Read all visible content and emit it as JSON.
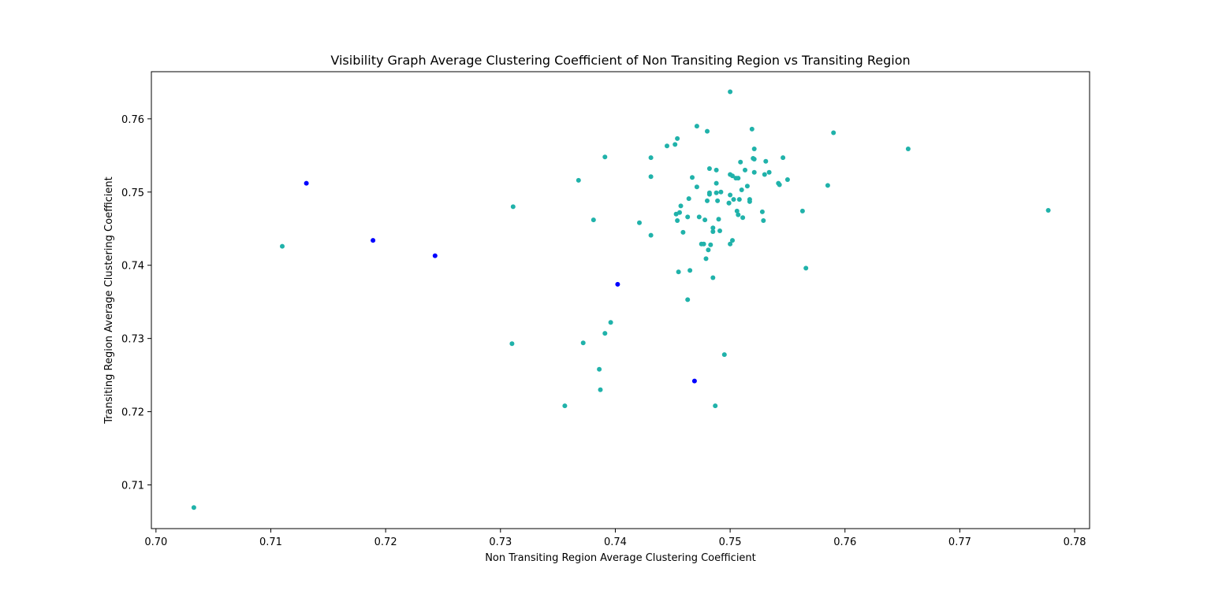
{
  "chart_data": {
    "type": "scatter",
    "title": "Visibility Graph Average Clustering Coefficient of Non Transiting Region vs Transiting Region",
    "xlabel": "Non Transiting Region Average Clustering Coefficient",
    "ylabel": "Transiting Region Average Clustering Coefficient",
    "xlim": [
      0.6996,
      0.7813
    ],
    "ylim": [
      0.70403,
      0.76644
    ],
    "xticks": [
      0.7,
      0.71,
      0.72,
      0.73,
      0.74,
      0.75,
      0.76,
      0.77,
      0.78
    ],
    "xtick_labels": [
      "0.70",
      "0.71",
      "0.72",
      "0.73",
      "0.74",
      "0.75",
      "0.76",
      "0.77",
      "0.78"
    ],
    "yticks": [
      0.71,
      0.72,
      0.73,
      0.74,
      0.75,
      0.76
    ],
    "ytick_labels": [
      "0.71",
      "0.72",
      "0.73",
      "0.74",
      "0.75",
      "0.76"
    ],
    "grid": false,
    "legend": "none",
    "series": [
      {
        "color": "#20b2aa",
        "points": [
          [
            0.7033,
            0.7069
          ],
          [
            0.711,
            0.7426
          ],
          [
            0.731,
            0.7293
          ],
          [
            0.7311,
            0.748
          ],
          [
            0.7356,
            0.7208
          ],
          [
            0.7368,
            0.7516
          ],
          [
            0.7372,
            0.7294
          ],
          [
            0.7381,
            0.7462
          ],
          [
            0.7386,
            0.7258
          ],
          [
            0.7387,
            0.723
          ],
          [
            0.7391,
            0.7548
          ],
          [
            0.7391,
            0.7307
          ],
          [
            0.7396,
            0.7322
          ],
          [
            0.7421,
            0.7458
          ],
          [
            0.7431,
            0.7547
          ],
          [
            0.7431,
            0.7521
          ],
          [
            0.7431,
            0.7441
          ],
          [
            0.7445,
            0.7563
          ],
          [
            0.7452,
            0.7565
          ],
          [
            0.7453,
            0.747
          ],
          [
            0.7454,
            0.7573
          ],
          [
            0.7454,
            0.7461
          ],
          [
            0.7455,
            0.7391
          ],
          [
            0.7456,
            0.7472
          ],
          [
            0.7457,
            0.7481
          ],
          [
            0.7459,
            0.7445
          ],
          [
            0.7463,
            0.7466
          ],
          [
            0.7463,
            0.7353
          ],
          [
            0.7464,
            0.7491
          ],
          [
            0.7465,
            0.7393
          ],
          [
            0.7467,
            0.752
          ],
          [
            0.7471,
            0.759
          ],
          [
            0.7471,
            0.7507
          ],
          [
            0.7473,
            0.7466
          ],
          [
            0.7475,
            0.7429
          ],
          [
            0.7477,
            0.7429
          ],
          [
            0.7478,
            0.7462
          ],
          [
            0.7479,
            0.7409
          ],
          [
            0.748,
            0.7583
          ],
          [
            0.748,
            0.7488
          ],
          [
            0.7481,
            0.7421
          ],
          [
            0.7482,
            0.7497
          ],
          [
            0.7482,
            0.7532
          ],
          [
            0.7482,
            0.7499
          ],
          [
            0.7483,
            0.7428
          ],
          [
            0.7485,
            0.7383
          ],
          [
            0.7485,
            0.7451
          ],
          [
            0.7485,
            0.7446
          ],
          [
            0.7487,
            0.7208
          ],
          [
            0.7488,
            0.7499
          ],
          [
            0.7488,
            0.753
          ],
          [
            0.7488,
            0.7512
          ],
          [
            0.7489,
            0.7488
          ],
          [
            0.749,
            0.7463
          ],
          [
            0.7491,
            0.7447
          ],
          [
            0.7492,
            0.75
          ],
          [
            0.7495,
            0.7278
          ],
          [
            0.7499,
            0.7485
          ],
          [
            0.7499,
            0.7485
          ],
          [
            0.75,
            0.7496
          ],
          [
            0.75,
            0.7524
          ],
          [
            0.75,
            0.7637
          ],
          [
            0.75,
            0.7429
          ],
          [
            0.7502,
            0.7434
          ],
          [
            0.7502,
            0.7522
          ],
          [
            0.7503,
            0.749
          ],
          [
            0.7505,
            0.7519
          ],
          [
            0.7506,
            0.7474
          ],
          [
            0.7507,
            0.7519
          ],
          [
            0.7507,
            0.7469
          ],
          [
            0.7508,
            0.749
          ],
          [
            0.7509,
            0.7541
          ],
          [
            0.751,
            0.7503
          ],
          [
            0.7511,
            0.7465
          ],
          [
            0.7513,
            0.753
          ],
          [
            0.7515,
            0.7508
          ],
          [
            0.7517,
            0.749
          ],
          [
            0.7517,
            0.7487
          ],
          [
            0.7519,
            0.7586
          ],
          [
            0.752,
            0.7546
          ],
          [
            0.7521,
            0.7527
          ],
          [
            0.7521,
            0.7559
          ],
          [
            0.7521,
            0.7545
          ],
          [
            0.7528,
            0.7473
          ],
          [
            0.7529,
            0.7461
          ],
          [
            0.753,
            0.7524
          ],
          [
            0.7531,
            0.7542
          ],
          [
            0.7534,
            0.7527
          ],
          [
            0.7542,
            0.7512
          ],
          [
            0.7543,
            0.751
          ],
          [
            0.7546,
            0.7547
          ],
          [
            0.755,
            0.7517
          ],
          [
            0.7563,
            0.7474
          ],
          [
            0.7566,
            0.7396
          ],
          [
            0.7585,
            0.7509
          ],
          [
            0.759,
            0.7581
          ],
          [
            0.7655,
            0.7559
          ],
          [
            0.7777,
            0.7475
          ]
        ]
      },
      {
        "color": "#0000ff",
        "points": [
          [
            0.7131,
            0.7512
          ],
          [
            0.7189,
            0.7434
          ],
          [
            0.7243,
            0.7413
          ],
          [
            0.7402,
            0.7374
          ],
          [
            0.7469,
            0.7242
          ]
        ]
      }
    ]
  }
}
